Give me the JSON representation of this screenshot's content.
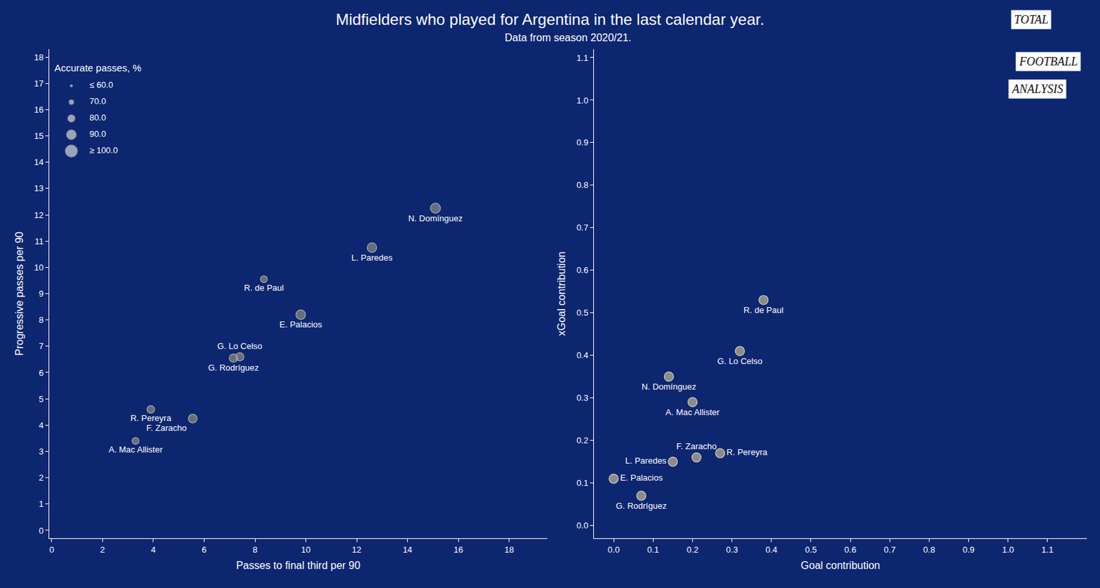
{
  "title": "Midfielders who played for Argentina in the last calendar year.",
  "subtitle": "Data from season 2020/21.",
  "logo": [
    "TOTAL",
    "FOOTBALL",
    "ANALYSIS"
  ],
  "chart_data": [
    {
      "type": "scatter",
      "x_label": "Passes to final third per 90",
      "y_label": "Progressive passes per 90",
      "labels": [
        "N. Domínguez",
        "L. Paredes",
        "R. de Paul",
        "E. Palacios",
        "G. Lo Celso",
        "G. Rodríguez",
        "R. Pereyra",
        "F. Zaracho",
        "A. Mac Allister"
      ],
      "x": [
        15.1,
        12.6,
        8.35,
        9.8,
        7.4,
        7.15,
        3.9,
        5.55,
        3.3
      ],
      "values": [
        12.25,
        10.75,
        9.55,
        8.2,
        6.6,
        6.55,
        4.6,
        4.25,
        3.4
      ],
      "accurate_passes": [
        90,
        88,
        77,
        88,
        83,
        83,
        80,
        85,
        77
      ],
      "size_legend": {
        "title": "Accurate passes, %",
        "values": [
          60,
          70,
          80,
          90,
          100
        ],
        "labels": [
          "≤ 60.0",
          "70.0",
          "80.0",
          "90.0",
          "≥ 100.0"
        ]
      },
      "color": "#8c8b84",
      "xlim": [
        -0.1,
        19.5
      ],
      "xticks": [
        0,
        2,
        4,
        6,
        8,
        10,
        12,
        14,
        16,
        18
      ],
      "ylim": [
        -0.3,
        18.3
      ],
      "yticks": [
        0,
        1,
        2,
        3,
        4,
        5,
        6,
        7,
        8,
        9,
        10,
        11,
        12,
        13,
        14,
        15,
        16,
        17,
        18
      ],
      "grid": false
    },
    {
      "type": "scatter",
      "x_label": "Goal contribution",
      "y_label": "xGoal contribution",
      "labels": [
        "R. de Paul",
        "G. Lo Celso",
        "N. Domínguez",
        "A. Mac Allister",
        "R. Pereyra",
        "F. Zaracho",
        "L. Paredes",
        "E. Palacios",
        "G. Rodríguez"
      ],
      "x": [
        0.38,
        0.32,
        0.14,
        0.2,
        0.27,
        0.21,
        0.15,
        0.0,
        0.07
      ],
      "values": [
        0.53,
        0.41,
        0.35,
        0.29,
        0.17,
        0.16,
        0.15,
        0.11,
        0.07
      ],
      "color": "#8c8b84",
      "xlim": [
        -0.05,
        1.2
      ],
      "xticks": [
        {
          "value": 0,
          "label": "0.0"
        },
        0.1,
        0.2,
        0.3,
        0.4,
        0.5,
        0.6,
        0.7,
        0.8,
        0.9,
        {
          "value": 1,
          "label": "1.0"
        },
        1.1
      ],
      "ylim": [
        -0.03,
        1.12
      ],
      "yticks": [
        {
          "value": 0,
          "label": "0.0"
        },
        0.1,
        0.2,
        0.3,
        0.4,
        0.5,
        0.6,
        0.7,
        0.8,
        0.9,
        {
          "value": 1,
          "label": "1.0"
        },
        1.1
      ],
      "grid": false
    }
  ]
}
